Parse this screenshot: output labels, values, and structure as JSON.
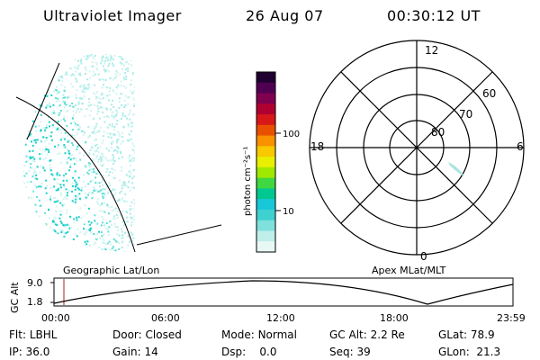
{
  "header": {
    "instrument": "Ultraviolet Imager",
    "date": "26 Aug 07",
    "time": "00:30:12 UT"
  },
  "colorbar": {
    "unit_label": "photon cm⁻²s⁻¹",
    "ticks": [
      "100",
      "10"
    ]
  },
  "polar_plot": {
    "labels": {
      "top": "12",
      "left": "18",
      "right": "6",
      "bottom": "0"
    },
    "rings": [
      "60",
      "70",
      "80"
    ]
  },
  "frames": {
    "left_caption": "Geographic Lat/Lon",
    "right_caption": "Apex MLat/MLT"
  },
  "altitude_plot": {
    "ylabel": "GC Alt",
    "yticks": [
      "9.0",
      "1.8"
    ],
    "xticks": [
      "00:00",
      "06:00",
      "12:00",
      "18:00",
      "23:59"
    ]
  },
  "status": {
    "row1": [
      {
        "key": "Flt:",
        "value": "LBHL"
      },
      {
        "key": "Door:",
        "value": "Closed"
      },
      {
        "key": "Mode:",
        "value": "Normal"
      },
      {
        "key": "GC Alt:",
        "value": "2.2 Re"
      },
      {
        "key": "GLat:",
        "value": "78.9"
      }
    ],
    "row2": [
      {
        "key": "IP:",
        "value": "36.0"
      },
      {
        "key": "Gain:",
        "value": "14"
      },
      {
        "key": "Dsp:",
        "value": "0.0"
      },
      {
        "key": "Seq:",
        "value": "39"
      },
      {
        "key": "GLon:",
        "value": "21.3"
      }
    ]
  },
  "colors": {
    "palette": [
      "#e8f8f4",
      "#c0eeea",
      "#7fe0dc",
      "#3fd0d0",
      "#18c8d8",
      "#00c890",
      "#40d840",
      "#a0e800",
      "#e8f000",
      "#f8c800",
      "#f89000",
      "#e85000",
      "#d81818",
      "#b00030",
      "#800050",
      "#500050",
      "#200030"
    ],
    "aurora": [
      "#18d0c8",
      "#60e0d8",
      "#a8ece8",
      "#d0f4f0"
    ],
    "marker": "#c04040"
  }
}
